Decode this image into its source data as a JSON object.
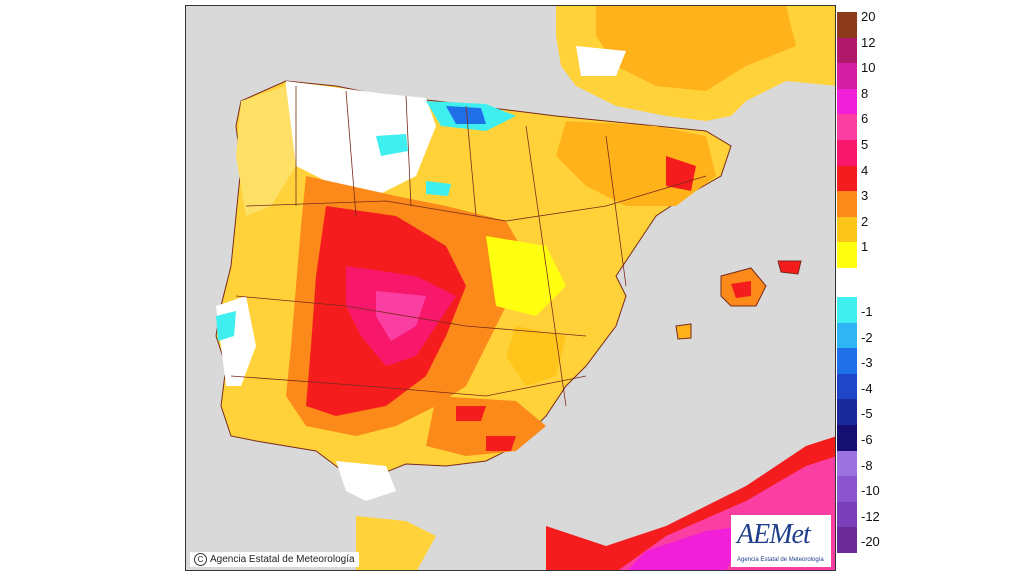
{
  "map": {
    "copyright_text": "Agencia Estatal de Meteorología",
    "logo_text": "AEMet",
    "logo_subtext": "Agencia Estatal de Meteorología"
  },
  "legend": {
    "positive": [
      {
        "label": "20",
        "color": "#8b3a1a"
      },
      {
        "label": "12",
        "color": "#b0186b"
      },
      {
        "label": "10",
        "color": "#d41fa3"
      },
      {
        "label": "8",
        "color": "#f21fd9"
      },
      {
        "label": "6",
        "color": "#fb3fa2"
      },
      {
        "label": "5",
        "color": "#f7186b"
      },
      {
        "label": "4",
        "color": "#f41c1c"
      },
      {
        "label": "3",
        "color": "#fb8a1a"
      },
      {
        "label": "2",
        "color": "#fbc51a"
      },
      {
        "label": "1",
        "color": "#ffff10"
      }
    ],
    "negative": [
      {
        "label": "-1",
        "color": "#3fefef"
      },
      {
        "label": "-2",
        "color": "#2fb4f4"
      },
      {
        "label": "-3",
        "color": "#1f6fe8"
      },
      {
        "label": "-4",
        "color": "#1f45c8"
      },
      {
        "label": "-5",
        "color": "#1a2a9a"
      },
      {
        "label": "-6",
        "color": "#140f70"
      },
      {
        "label": "-8",
        "color": "#9c72e0"
      },
      {
        "label": "-10",
        "color": "#8b55d0"
      },
      {
        "label": "-12",
        "color": "#7a3fb8"
      },
      {
        "label": "-20",
        "color": "#6a2a98"
      }
    ]
  }
}
